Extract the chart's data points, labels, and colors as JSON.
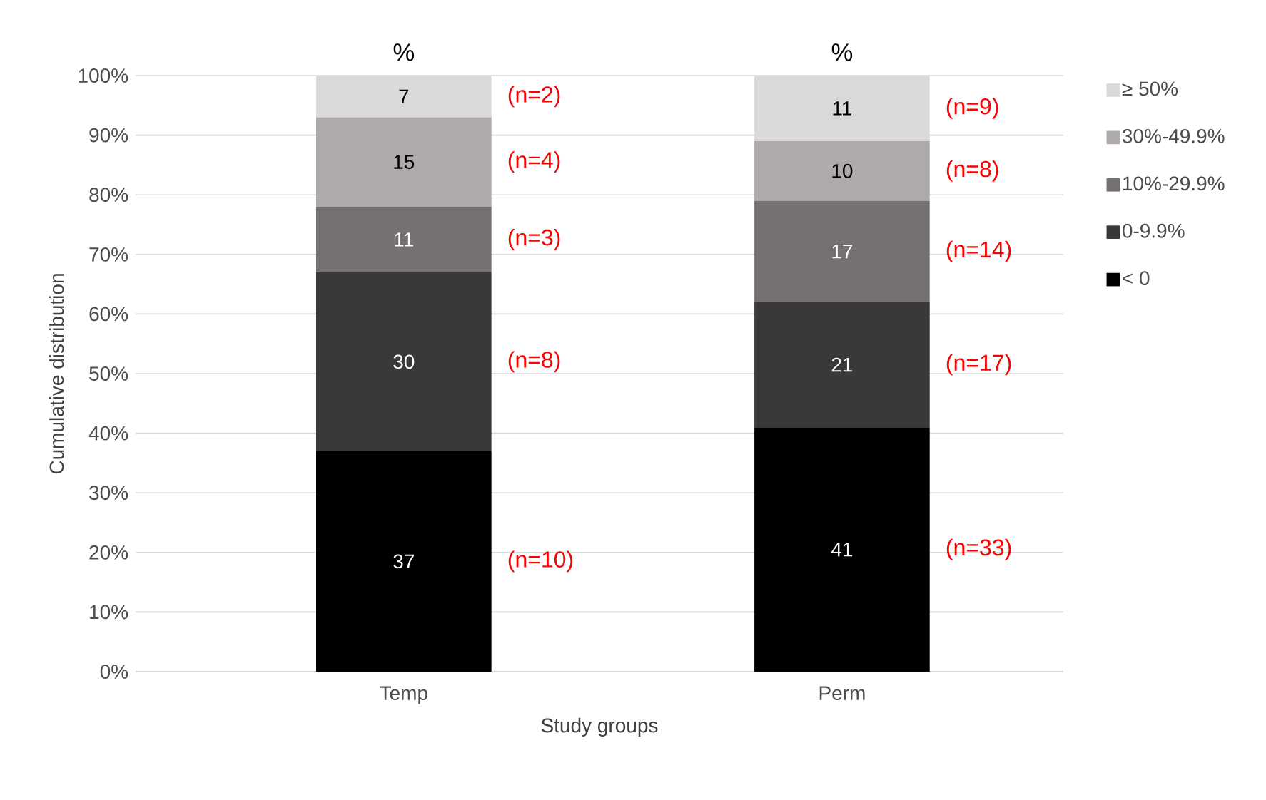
{
  "chart_data": {
    "type": "bar",
    "stacked": true,
    "xlabel": "Study groups",
    "ylabel": "Cumulative distribution",
    "categories": [
      "Temp",
      "Perm"
    ],
    "series": [
      {
        "name": "< 0",
        "color": "#000000",
        "values": [
          37,
          41
        ]
      },
      {
        "name": "0-9.9%",
        "color": "#3b3838",
        "values": [
          30,
          21
        ]
      },
      {
        "name": "10%-29.9%",
        "color": "#767171",
        "values": [
          11,
          17
        ]
      },
      {
        "name": "30%-49.9%",
        "color": "#aeaaaa",
        "values": [
          15,
          10
        ]
      },
      {
        "name": "≥ 50%",
        "color": "#d9d9d9",
        "values": [
          7,
          11
        ]
      }
    ],
    "ylim": [
      0,
      100
    ],
    "yticks": [
      {
        "value": 0,
        "label": "0%"
      },
      {
        "value": 10,
        "label": "10%"
      },
      {
        "value": 20,
        "label": "20%"
      },
      {
        "value": 30,
        "label": "30%"
      },
      {
        "value": 40,
        "label": "40%"
      },
      {
        "value": 50,
        "label": "50%"
      },
      {
        "value": 60,
        "label": "60%"
      },
      {
        "value": 70,
        "label": "70%"
      },
      {
        "value": 80,
        "label": "80%"
      },
      {
        "value": 90,
        "label": "90%"
      },
      {
        "value": 100,
        "label": "100%"
      }
    ],
    "grid": "y",
    "legend": "right",
    "data_labels": true,
    "annotations": [
      "%",
      "%",
      "(n=2)",
      "(n=4)",
      "(n=3)",
      "(n=8)",
      "(n=10)",
      "(n=9)",
      "(n=8)",
      "(n=14)",
      "(n=17)",
      "(n=33)"
    ]
  }
}
